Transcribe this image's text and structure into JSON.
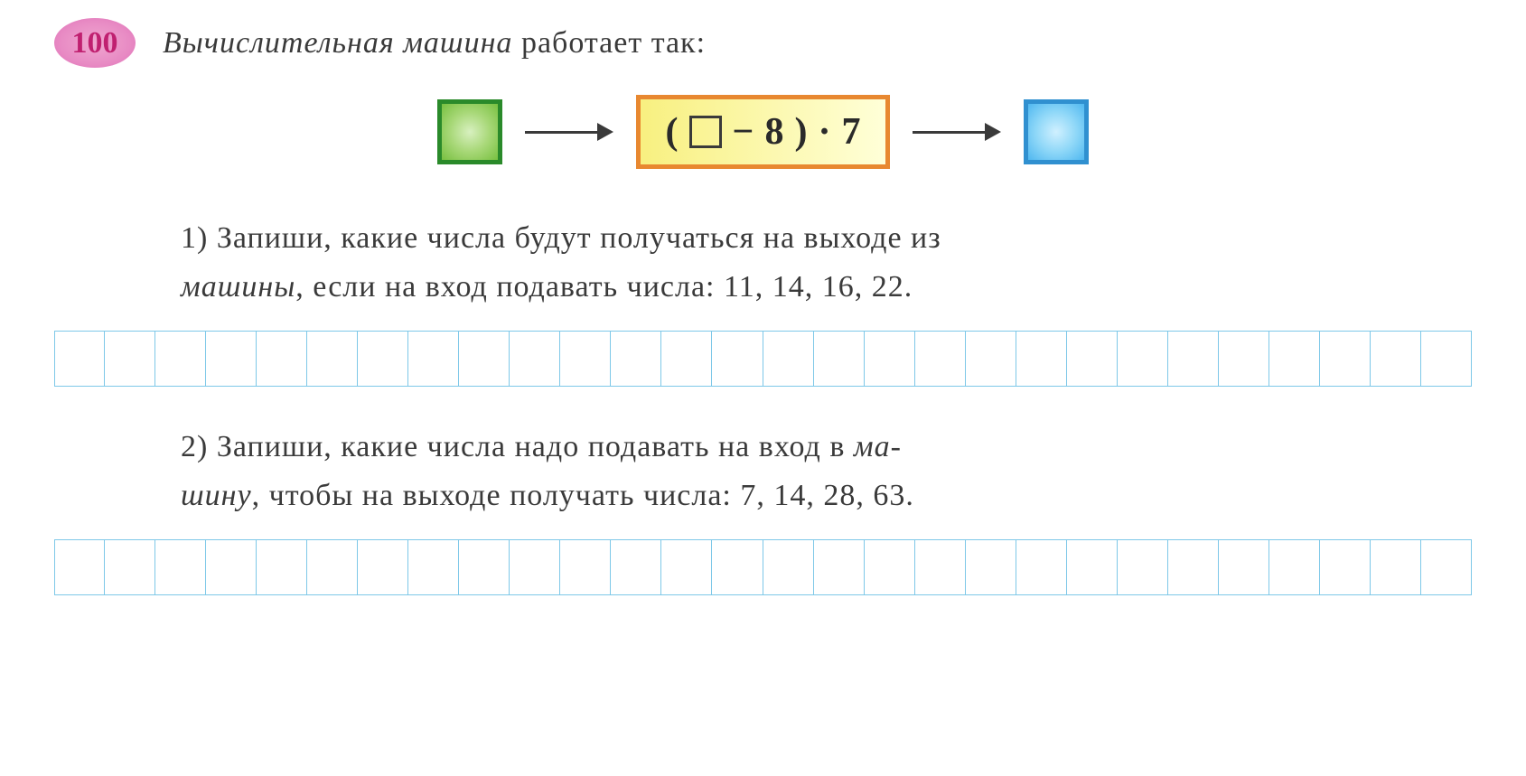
{
  "problem": {
    "number": "100",
    "header_italic": "Вычислительная машина",
    "header_rest": " работает так:"
  },
  "diagram": {
    "formula": {
      "open": "(",
      "minus": "−",
      "value1": "8",
      "close": ")",
      "dot": "·",
      "value2": "7"
    },
    "colors": {
      "green_border": "#2a8a2a",
      "green_fill_inner": "#d8f0c0",
      "green_fill_outer": "#78c040",
      "blue_border": "#3090d0",
      "blue_fill_inner": "#d0f0ff",
      "blue_fill_outer": "#50b8f0",
      "formula_border": "#e88830",
      "formula_bg_left": "#f8f080",
      "formula_bg_right": "#ffffd8",
      "arrow_color": "#3a3a3a"
    }
  },
  "tasks": {
    "t1": {
      "num": "1)",
      "line1": "Запиши, какие числа будут получаться на выходе из",
      "line2_italic": "машины",
      "line2_rest": ", если на вход подавать числа: 11, 14, 16, 22."
    },
    "t2": {
      "num": "2)",
      "line1a": "Запиши, какие числа надо подавать на вход в ",
      "line1_italic": "ма-",
      "line2_italic": "шину",
      "line2_rest": ", чтобы на выходе получать числа: 7, 14, 28, 63."
    }
  },
  "grid": {
    "cells_count": 28,
    "cell_border_color": "#7ec8e8"
  }
}
